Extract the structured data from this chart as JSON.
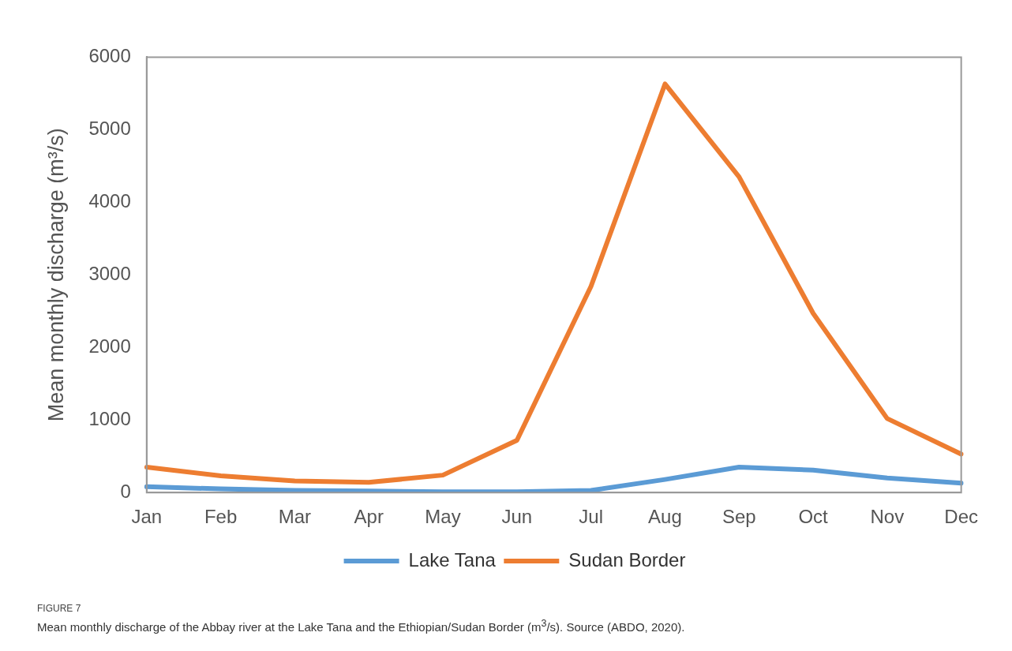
{
  "chart_data": {
    "type": "line",
    "ylabel": "Mean monthly discharge (m³/s)",
    "categories": [
      "Jan",
      "Feb",
      "Mar",
      "Apr",
      "May",
      "Jun",
      "Jul",
      "Aug",
      "Sep",
      "Oct",
      "Nov",
      "Dec"
    ],
    "series": [
      {
        "name": "Lake Tana",
        "color": "#5b9bd5",
        "values": [
          80,
          50,
          30,
          20,
          10,
          10,
          30,
          180,
          350,
          310,
          200,
          130
        ]
      },
      {
        "name": "Sudan Border",
        "color": "#ed7d31",
        "values": [
          350,
          230,
          160,
          140,
          240,
          720,
          2840,
          5630,
          4350,
          2470,
          1020,
          530
        ]
      }
    ],
    "ylim": [
      0,
      6000
    ],
    "yticks": [
      0,
      1000,
      2000,
      3000,
      4000,
      5000,
      6000
    ],
    "grid": false,
    "legend": "bottom",
    "marker": "none",
    "line_style": "solid",
    "annotations": [
      "FIGURE 7",
      "Mean monthly discharge of the Abbay river at the Lake Tana and the Ethiopian/Sudan Border (m$^{3}$/s). Source (ABDO, 2020)."
    ]
  }
}
